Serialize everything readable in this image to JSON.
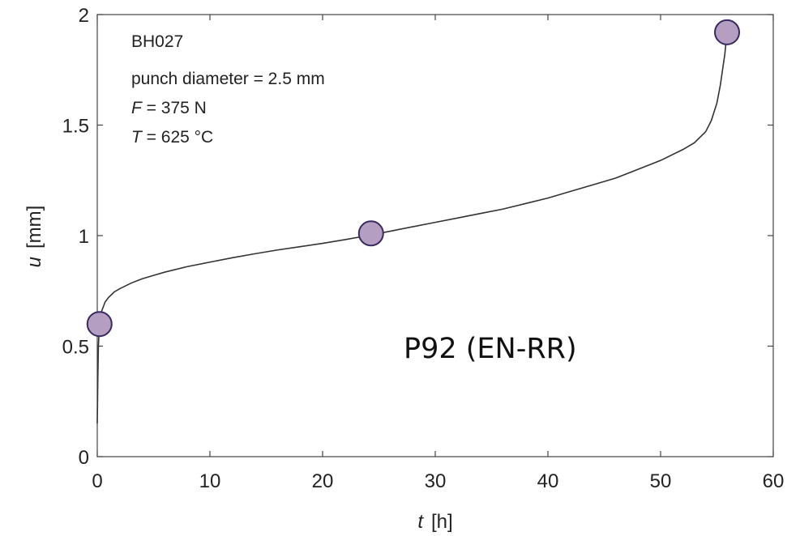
{
  "chart_data": {
    "type": "line",
    "xlim": [
      0,
      60
    ],
    "ylim": [
      0,
      2
    ],
    "x_ticks": [
      "0",
      "10",
      "20",
      "30",
      "40",
      "50",
      "60"
    ],
    "y_ticks": [
      "0",
      "0.5",
      "1",
      "1.5",
      "2"
    ],
    "xlabel": {
      "symbol": "t",
      "unit": "[h]"
    },
    "ylabel": {
      "symbol": "u",
      "unit": "[mm]"
    },
    "grid": false,
    "line_color": "#333333",
    "marker_fill": "#b49ec1",
    "marker_stroke": "#3a2a60",
    "series": [
      {
        "x": [
          0,
          0.05,
          0.1,
          0.2,
          0.4,
          0.7,
          1.0,
          1.5,
          2,
          3,
          4,
          5,
          6,
          8,
          10,
          12,
          14,
          16,
          18,
          20,
          22,
          24,
          26,
          28,
          30,
          32,
          34,
          36,
          38,
          40,
          42,
          44,
          46,
          48,
          50,
          52,
          53,
          54,
          54.5,
          55,
          55.3,
          55.5,
          55.7,
          55.8,
          55.9
        ],
        "y": [
          0.15,
          0.35,
          0.5,
          0.6,
          0.66,
          0.7,
          0.72,
          0.745,
          0.76,
          0.785,
          0.805,
          0.82,
          0.835,
          0.86,
          0.88,
          0.9,
          0.918,
          0.935,
          0.95,
          0.965,
          0.982,
          1.0,
          1.02,
          1.04,
          1.06,
          1.08,
          1.1,
          1.12,
          1.145,
          1.17,
          1.2,
          1.23,
          1.26,
          1.3,
          1.34,
          1.39,
          1.42,
          1.47,
          1.52,
          1.6,
          1.68,
          1.75,
          1.82,
          1.87,
          1.92
        ]
      }
    ],
    "markers": [
      {
        "x": 0.2,
        "y": 0.6
      },
      {
        "x": 24.3,
        "y": 1.01
      },
      {
        "x": 55.9,
        "y": 1.92
      }
    ],
    "annotations": {
      "specimen": "BH027",
      "punch": "punch diameter = 2.5 mm",
      "force_symbol": "F",
      "force_value": " = 375 N",
      "temp_symbol": "T",
      "temp_value": " = 625 °C",
      "material": "P92 (EN-RR)"
    }
  }
}
